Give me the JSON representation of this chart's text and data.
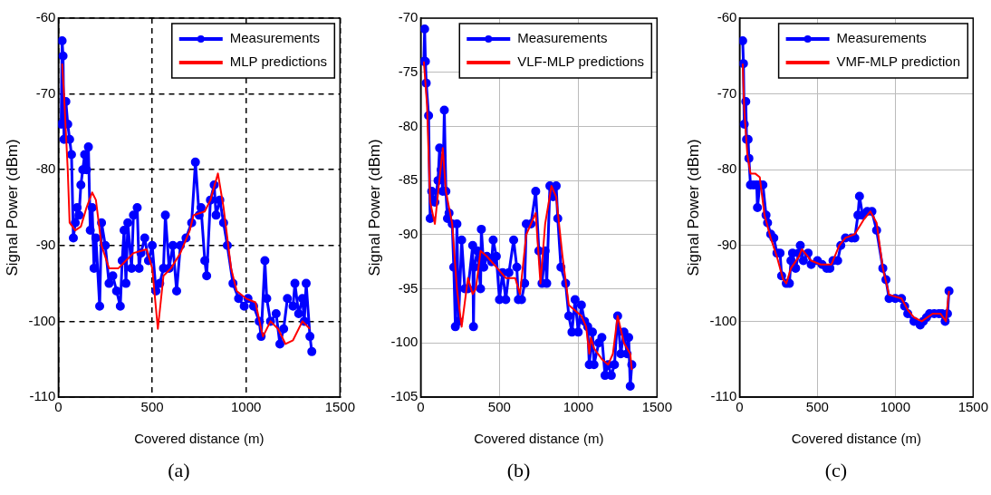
{
  "chart_data": [
    {
      "type": "line",
      "xlabel": "Covered distance (m)",
      "ylabel": "Signal Power (dBm)",
      "xlim": [
        0,
        1500
      ],
      "xticks": [
        0,
        500,
        1000,
        1500
      ],
      "ylim": [
        -110,
        -60
      ],
      "yticks": [
        -110,
        -100,
        -90,
        -80,
        -70,
        -60
      ],
      "grid": true,
      "legend": "top right",
      "annotations": [
        "(a)"
      ],
      "series": [
        {
          "name": "Measurements",
          "color": "#0000ff",
          "marker": "circle",
          "x": [
            15,
            20,
            25,
            30,
            40,
            50,
            60,
            70,
            80,
            90,
            100,
            110,
            120,
            130,
            140,
            150,
            160,
            170,
            180,
            190,
            200,
            220,
            230,
            250,
            270,
            290,
            310,
            330,
            340,
            350,
            360,
            370,
            390,
            400,
            420,
            430,
            440,
            460,
            480,
            500,
            520,
            540,
            560,
            570,
            590,
            610,
            630,
            650,
            680,
            710,
            730,
            750,
            760,
            780,
            790,
            810,
            830,
            840,
            860,
            880,
            900,
            930,
            960,
            990,
            1010,
            1040,
            1070,
            1080,
            1100,
            1110,
            1130,
            1160,
            1180,
            1200,
            1220,
            1250,
            1260,
            1280,
            1300,
            1310,
            1320,
            1340,
            1350
          ],
          "values": [
            -74,
            -63,
            -65,
            -76,
            -71,
            -74,
            -76,
            -78,
            -89,
            -87,
            -85,
            -86,
            -82,
            -80,
            -78,
            -80,
            -77,
            -88,
            -85,
            -93,
            -89,
            -98,
            -87,
            -90,
            -95,
            -94,
            -96,
            -98,
            -92,
            -88,
            -95,
            -87,
            -93,
            -86,
            -85,
            -93,
            -91,
            -89,
            -92,
            -90,
            -96,
            -95,
            -93,
            -86,
            -93,
            -90,
            -96,
            -90,
            -89,
            -87,
            -79,
            -86,
            -85,
            -92,
            -94,
            -84,
            -82,
            -86,
            -84,
            -87,
            -90,
            -95,
            -97,
            -98,
            -97,
            -98,
            -100,
            -102,
            -92,
            -97,
            -100,
            -99,
            -103,
            -101,
            -97,
            -98,
            -95,
            -99,
            -97,
            -100,
            -95,
            -102,
            -104
          ]
        },
        {
          "name": "MLP predictions",
          "color": "#ff0000",
          "marker": "none",
          "x": [
            20,
            30,
            50,
            60,
            90,
            120,
            150,
            180,
            200,
            230,
            270,
            320,
            360,
            400,
            470,
            500,
            530,
            560,
            600,
            650,
            700,
            720,
            780,
            810,
            850,
            880,
            920,
            950,
            1000,
            1050,
            1080,
            1090,
            1130,
            1170,
            1210,
            1250,
            1300,
            1340
          ],
          "values": [
            -66,
            -70,
            -80,
            -87,
            -88,
            -87.5,
            -85,
            -83,
            -84,
            -90,
            -93,
            -93,
            -92,
            -91,
            -90.5,
            -93,
            -101,
            -94,
            -93,
            -91,
            -88,
            -86,
            -85.5,
            -84,
            -80.5,
            -85,
            -93,
            -96,
            -97,
            -97.5,
            -101,
            -102,
            -100,
            -101,
            -103,
            -102.5,
            -100,
            -101
          ]
        }
      ]
    },
    {
      "type": "line",
      "xlabel": "Covered distance (m)",
      "ylabel": "Signal Power (dBm)",
      "xlim": [
        0,
        1500
      ],
      "xticks": [
        0,
        500,
        1000,
        1500
      ],
      "ylim": [
        -105,
        -70
      ],
      "yticks": [
        -105,
        -100,
        -95,
        -90,
        -85,
        -80,
        -75,
        -70
      ],
      "grid": true,
      "legend": "top right",
      "annotations": [
        "(b)"
      ],
      "series": [
        {
          "name": "Measurements",
          "color": "#0000ff",
          "marker": "circle",
          "x": [
            20,
            25,
            30,
            35,
            50,
            60,
            70,
            90,
            110,
            120,
            130,
            140,
            150,
            160,
            170,
            180,
            200,
            210,
            220,
            230,
            240,
            260,
            280,
            300,
            330,
            335,
            340,
            360,
            380,
            385,
            400,
            420,
            450,
            460,
            480,
            500,
            520,
            540,
            560,
            590,
            610,
            620,
            640,
            660,
            670,
            700,
            730,
            750,
            770,
            790,
            800,
            820,
            840,
            860,
            870,
            890,
            920,
            940,
            960,
            980,
            1000,
            1020,
            1040,
            1060,
            1070,
            1090,
            1100,
            1130,
            1150,
            1170,
            1190,
            1210,
            1230,
            1250,
            1270,
            1290,
            1310,
            1320,
            1330,
            1340
          ],
          "values": [
            -74,
            -71,
            -74,
            -76,
            -79,
            -88.5,
            -86,
            -87,
            -85,
            -82,
            -84,
            -86,
            -78.5,
            -86,
            -88.5,
            -88,
            -89,
            -93,
            -98.5,
            -89,
            -98,
            -90.5,
            -95,
            -95,
            -91,
            -98.5,
            -93,
            -91.5,
            -95,
            -89.5,
            -93,
            -92,
            -92.5,
            -90.5,
            -92,
            -96,
            -93.5,
            -96,
            -93.5,
            -90.5,
            -93,
            -96,
            -96,
            -94.5,
            -89,
            -89,
            -86,
            -91.5,
            -94.5,
            -91.5,
            -94.5,
            -85.5,
            -86.5,
            -85.5,
            -88.5,
            -93,
            -94.5,
            -97.5,
            -99,
            -96,
            -99,
            -96.5,
            -98,
            -98.5,
            -102,
            -99,
            -102,
            -100,
            -99.5,
            -103,
            -102,
            -103,
            -102,
            -97.5,
            -101,
            -99,
            -101,
            -99.5,
            -104,
            -102
          ]
        },
        {
          "name": "VLF-MLP predictions",
          "color": "#ff0000",
          "marker": "none",
          "x": [
            20,
            40,
            60,
            90,
            140,
            160,
            200,
            230,
            260,
            300,
            330,
            350,
            380,
            420,
            480,
            540,
            600,
            630,
            670,
            730,
            760,
            790,
            830,
            860,
            900,
            940,
            980,
            1020,
            1050,
            1070,
            1080,
            1100,
            1150,
            1190,
            1220,
            1250,
            1290,
            1330,
            1340
          ],
          "values": [
            -74,
            -78,
            -87,
            -89,
            -82,
            -86,
            -89,
            -95,
            -98.5,
            -94,
            -95.5,
            -95,
            -91.5,
            -92,
            -93,
            -94,
            -94,
            -95.5,
            -90,
            -88,
            -94.5,
            -89,
            -85.5,
            -86.5,
            -92,
            -96.5,
            -97,
            -97.5,
            -98.5,
            -101,
            -99.5,
            -100.5,
            -101.5,
            -102,
            -101,
            -97.5,
            -100,
            -101,
            -102.5
          ]
        }
      ]
    },
    {
      "type": "line",
      "xlabel": "Covered distance (m)",
      "ylabel": "Signal Power (dBm)",
      "xlim": [
        0,
        1500
      ],
      "xticks": [
        0,
        500,
        1000,
        1500
      ],
      "ylim": [
        -110,
        -60
      ],
      "yticks": [
        -110,
        -100,
        -90,
        -80,
        -70,
        -60
      ],
      "grid": true,
      "legend": "top right",
      "annotations": [
        "(c)"
      ],
      "series": [
        {
          "name": "Measurements",
          "color": "#0000ff",
          "marker": "circle",
          "x": [
            20,
            25,
            30,
            40,
            45,
            55,
            60,
            70,
            90,
            110,
            115,
            130,
            150,
            170,
            180,
            200,
            220,
            240,
            260,
            270,
            300,
            320,
            330,
            340,
            360,
            380,
            390,
            410,
            440,
            460,
            500,
            530,
            560,
            580,
            600,
            630,
            650,
            680,
            720,
            740,
            760,
            770,
            790,
            820,
            850,
            880,
            920,
            940,
            960,
            1000,
            1040,
            1060,
            1080,
            1120,
            1160,
            1180,
            1200,
            1220,
            1250,
            1280,
            1300,
            1320,
            1335,
            1345
          ],
          "values": [
            -63,
            -66,
            -74,
            -71,
            -76,
            -76,
            -78.5,
            -82,
            -82,
            -82,
            -85,
            -82,
            -82,
            -86,
            -87,
            -88.5,
            -89,
            -91,
            -91,
            -94,
            -95,
            -95,
            -92,
            -91,
            -93,
            -91,
            -90,
            -92,
            -91,
            -92.5,
            -92,
            -92.5,
            -93,
            -93,
            -92,
            -92,
            -90,
            -89,
            -89,
            -89,
            -86,
            -83.5,
            -86,
            -85.5,
            -85.5,
            -88,
            -93,
            -94.5,
            -97,
            -97,
            -97,
            -98,
            -99,
            -100,
            -100.5,
            -100,
            -99.5,
            -99,
            -99,
            -99,
            -99,
            -100,
            -99,
            -96
          ]
        },
        {
          "name": "VMF-MLP prediction",
          "color": "#ff0000",
          "marker": "none",
          "x": [
            20,
            30,
            50,
            70,
            100,
            130,
            160,
            200,
            240,
            280,
            300,
            330,
            380,
            400,
            460,
            520,
            590,
            640,
            680,
            740,
            800,
            840,
            880,
            920,
            960,
            1040,
            1080,
            1120,
            1170,
            1240,
            1290,
            1325,
            1345
          ],
          "values": [
            -66,
            -72,
            -78,
            -80.5,
            -80.5,
            -81,
            -86,
            -89,
            -91.5,
            -94.5,
            -95,
            -93,
            -91.5,
            -90.5,
            -92,
            -92.5,
            -92.5,
            -90,
            -89,
            -88.5,
            -86.5,
            -85.5,
            -87,
            -93,
            -96.5,
            -97,
            -98.5,
            -99.5,
            -100,
            -99,
            -99,
            -100,
            -96
          ]
        }
      ]
    }
  ]
}
